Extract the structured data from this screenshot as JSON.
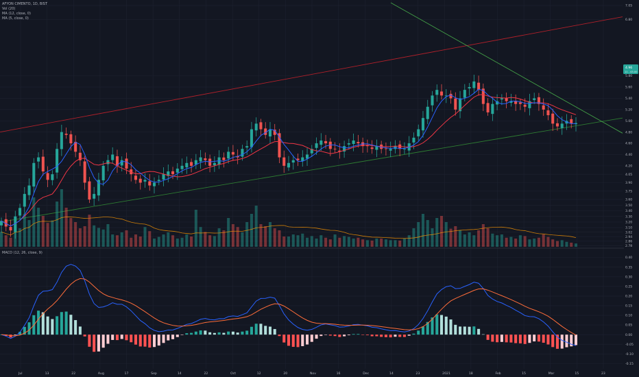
{
  "header": {
    "symbol_line": "AFYON CIMENTO, 1D, BIST",
    "indicator_lines": [
      "Vol (20)",
      "MA (12, close, 0)",
      "MA (5, close, 0)"
    ]
  },
  "macd_header": "MACD (12, 26, close, 9)",
  "last_price": {
    "value_label": "4.96",
    "sub_label": "11 - 45.00"
  },
  "colors": {
    "background": "#131722",
    "up": "#26a69a",
    "down": "#ef5350",
    "ma5": "#2962ff",
    "ma12": "#f23645",
    "trend_upper": "#b2202a",
    "trend_support": "#2e7d32",
    "trend_resist": "#43a047",
    "macd_line": "#2962ff",
    "signal_line": "#ff6d3a",
    "grid": "#1e2230"
  },
  "chart_data": [
    {
      "type": "candlestick",
      "title": "AFYON CIMENTO, 1D, BIST",
      "x_tick_labels": [
        "Jul",
        "13",
        "22",
        "Aug",
        "17",
        "Sep",
        "14",
        "22",
        "Oct",
        "12",
        "20",
        "Nov",
        "16",
        "Dec",
        "14",
        "23",
        "2021",
        "18",
        "Feb",
        "15",
        "Mar",
        "15",
        "23"
      ],
      "y_tick_labels": [
        "7.05",
        "6.80",
        "5.80",
        "5.60",
        "5.40",
        "5.20",
        "5.00",
        "4.80",
        "4.60",
        "4.40",
        "4.20",
        "4.05",
        "3.90",
        "3.75",
        "3.60",
        "3.50",
        "3.40",
        "3.30",
        "3.20",
        "3.10",
        "3.02",
        "2.94",
        "2.86",
        "2.78"
      ],
      "ylim": [
        2.76,
        7.1
      ],
      "grid": true,
      "candles_close": [
        3.22,
        3.12,
        3.05,
        3.3,
        3.45,
        3.7,
        3.85,
        4.25,
        4.35,
        4.1,
        3.95,
        4.05,
        4.5,
        4.8,
        4.75,
        4.6,
        4.45,
        4.3,
        3.9,
        3.6,
        3.7,
        3.95,
        4.2,
        4.3,
        4.4,
        4.2,
        4.3,
        4.15,
        4.05,
        3.95,
        3.9,
        3.95,
        3.85,
        3.9,
        3.95,
        4.05,
        4.1,
        4.05,
        4.15,
        4.2,
        4.25,
        4.2,
        4.3,
        4.35,
        4.3,
        4.2,
        4.25,
        4.35,
        4.3,
        4.45,
        4.4,
        4.35,
        4.5,
        4.55,
        4.85,
        4.95,
        4.85,
        4.75,
        4.85,
        4.75,
        4.35,
        4.2,
        4.25,
        4.3,
        4.3,
        4.35,
        4.4,
        4.5,
        4.6,
        4.65,
        4.6,
        4.5,
        4.5,
        4.45,
        4.55,
        4.6,
        4.65,
        4.6,
        4.55,
        4.55,
        4.5,
        4.55,
        4.5,
        4.5,
        4.5,
        4.55,
        4.5,
        4.5,
        4.6,
        4.7,
        4.85,
        5.05,
        5.25,
        5.45,
        5.55,
        5.45,
        5.45,
        5.4,
        5.2,
        5.4,
        5.55,
        5.6,
        5.7,
        5.55,
        5.3,
        5.15,
        5.3,
        5.35,
        5.4,
        5.35,
        5.35,
        5.3,
        5.3,
        5.25,
        5.35,
        5.4,
        5.3,
        5.2,
        5.1,
        4.95,
        4.9,
        4.95,
        5.0,
        4.95,
        4.96
      ],
      "ma5": "computed from candles_close",
      "ma12": "computed from candles_close"
    },
    {
      "type": "bar",
      "title": "Vol (20)",
      "values": [
        36,
        28,
        22,
        55,
        45,
        80,
        65,
        120,
        95,
        75,
        58,
        64,
        110,
        140,
        95,
        70,
        60,
        45,
        50,
        78,
        52,
        46,
        42,
        55,
        30,
        28,
        35,
        40,
        22,
        30,
        25,
        48,
        38,
        20,
        24,
        30,
        35,
        28,
        20,
        22,
        30,
        25,
        90,
        48,
        36,
        28,
        26,
        45,
        40,
        70,
        55,
        48,
        35,
        60,
        80,
        100,
        55,
        50,
        60,
        45,
        40,
        25,
        25,
        30,
        28,
        32,
        22,
        26,
        20,
        28,
        22,
        18,
        30,
        22,
        26,
        24,
        20,
        22,
        18,
        16,
        15,
        20,
        20,
        18,
        16,
        16,
        15,
        20,
        28,
        45,
        60,
        80,
        65,
        45,
        70,
        75,
        60,
        44,
        50,
        40,
        30,
        35,
        28,
        40,
        55,
        45,
        32,
        28,
        30,
        22,
        24,
        20,
        28,
        26,
        18,
        20,
        22,
        30,
        24,
        18,
        14,
        16,
        12,
        10,
        8
      ],
      "ylim": [
        0,
        150
      ]
    },
    {
      "type": "line",
      "title": "MACD (12, 26, close, 9)",
      "y_tick_labels": [
        "0.40",
        "0.35",
        "0.30",
        "0.25",
        "0.20",
        "0.15",
        "0.10",
        "0.05",
        "0.00",
        "-0.05",
        "-0.10",
        "-0.15"
      ],
      "ylim": [
        -0.17,
        0.42
      ],
      "series": [
        {
          "values": "MACD line computed from candles_close"
        },
        {
          "values": "signal line computed from MACD line"
        },
        {
          "values": "histogram = MACD - signal"
        }
      ]
    }
  ]
}
